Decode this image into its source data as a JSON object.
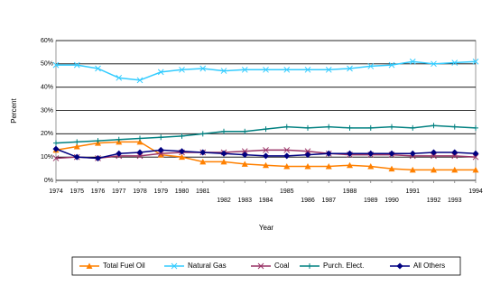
{
  "chart_data": {
    "type": "line",
    "y_label": "Percent",
    "x_label": "Year",
    "categories": [
      "1974",
      "1975",
      "1976",
      "1977",
      "1978",
      "1979",
      "1980",
      "1981",
      "1982",
      "1983",
      "1984",
      "1985",
      "1986",
      "1987",
      "1988",
      "1989",
      "1990",
      "1991",
      "1992",
      "1993",
      "1994"
    ],
    "ylim": [
      0,
      60
    ],
    "yticks": [
      {
        "value": 0,
        "label": "0%"
      },
      {
        "value": 10,
        "label": "10%"
      },
      {
        "value": 20,
        "label": "20%"
      },
      {
        "value": 30,
        "label": "30%"
      },
      {
        "value": 40,
        "label": "40%"
      },
      {
        "value": 50,
        "label": "50%"
      },
      {
        "value": 60,
        "label": "60%"
      }
    ],
    "grid": true,
    "legend": "bottom",
    "series": [
      {
        "name": "Total Fuel Oil",
        "color": "#FF8000",
        "marker": "triangle",
        "values": [
          13,
          14.5,
          16,
          16.5,
          16.5,
          11,
          10,
          8,
          8,
          7,
          6.5,
          6,
          6,
          6,
          6.5,
          6,
          5,
          4.5,
          4.5,
          4.5,
          4.5
        ]
      },
      {
        "name": "Natural Gas",
        "color": "#33CCFF",
        "marker": "x",
        "values": [
          49.5,
          49.5,
          48,
          44,
          43,
          46.5,
          47.5,
          48,
          47,
          47.5,
          47.5,
          47.5,
          47.5,
          47.5,
          48,
          49,
          49.5,
          51,
          50,
          50.5,
          51
        ]
      },
      {
        "name": "Coal",
        "color": "#993366",
        "marker": "x",
        "values": [
          9.5,
          10,
          9.5,
          10.5,
          10.5,
          11.5,
          12,
          12,
          12,
          12.5,
          13,
          13,
          12.5,
          11.5,
          11,
          11,
          11,
          10.5,
          10.5,
          10.5,
          10
        ]
      },
      {
        "name": "Purch. Elect.",
        "color": "#008080",
        "marker": "plus",
        "values": [
          16,
          16.5,
          17,
          17.5,
          18,
          18.5,
          19,
          20,
          21,
          21,
          22,
          23,
          22.5,
          23,
          22.5,
          22.5,
          23,
          22.5,
          23.5,
          23,
          22.5
        ]
      },
      {
        "name": "All Others",
        "color": "#000080",
        "marker": "diamond",
        "values": [
          13.5,
          10,
          9.5,
          11.5,
          12,
          13,
          12.5,
          12,
          11.5,
          11,
          10.5,
          10.5,
          11,
          11.5,
          11.5,
          11.5,
          11.5,
          11.5,
          12,
          12,
          11.5
        ]
      }
    ]
  }
}
